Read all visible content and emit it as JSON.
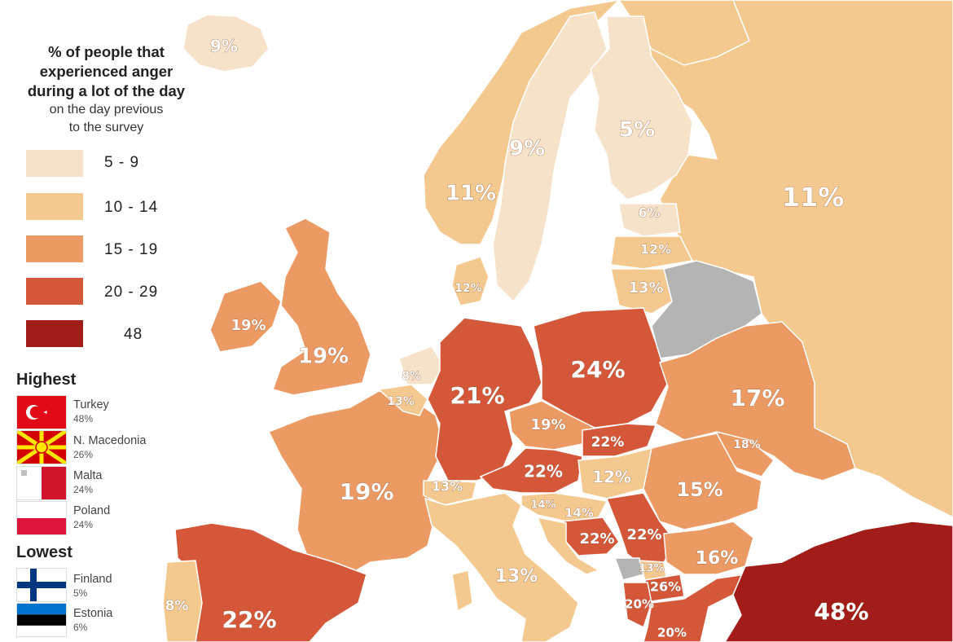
{
  "legend": {
    "title_line1": "% of people that",
    "title_line2": "experienced anger",
    "title_line3": "during a lot of the day",
    "subtitle_line1": "on the day previous",
    "subtitle_line2": "to the survey",
    "bins": [
      {
        "label": "5 - 9",
        "color": "#f6e2c8"
      },
      {
        "label": "10 - 14",
        "color": "#f3c98f"
      },
      {
        "label": "15 - 19",
        "color": "#ec9a63"
      },
      {
        "label": "20 - 29",
        "color": "#d4573a"
      },
      {
        "label": "48",
        "color": "#a21d19"
      }
    ],
    "highest_heading": "Highest",
    "highest": [
      {
        "country": "Turkey",
        "value": "48%"
      },
      {
        "country": "N. Macedonia",
        "value": "26%"
      },
      {
        "country": "Malta",
        "value": "24%"
      },
      {
        "country": "Poland",
        "value": "24%"
      }
    ],
    "lowest_heading": "Lowest",
    "lowest": [
      {
        "country": "Finland",
        "value": "5%"
      },
      {
        "country": "Estonia",
        "value": "6%"
      }
    ]
  },
  "map_labels": {
    "iceland": "9%",
    "norway": "11%",
    "sweden": "9%",
    "finland": "5%",
    "russia": "11%",
    "estonia": "6%",
    "latvia": "12%",
    "lithuania": "13%",
    "denmark": "12%",
    "ireland": "19%",
    "uk": "19%",
    "netherlands": "8%",
    "belgium": "13%",
    "germany": "21%",
    "poland": "24%",
    "ukraine": "17%",
    "czechia": "19%",
    "slovakia": "22%",
    "moldova": "18%",
    "austria": "22%",
    "hungary": "12%",
    "switzerland": "13%",
    "slovenia": "14%",
    "croatia_n": "14%",
    "romania": "15%",
    "france": "19%",
    "bosnia": "22%",
    "serbia": "22%",
    "bulgaria": "16%",
    "montenegro": "13%",
    "n_macedonia": "26%",
    "albania": "20%",
    "greece": "20%",
    "italy": "13%",
    "portugal": "8%",
    "spain": "22%",
    "turkey": "48%"
  },
  "colors": {
    "c5_9": "#f6e2c8",
    "c10_14": "#f3c98f",
    "c15_19": "#ec9a63",
    "c20_29": "#d4573a",
    "c48": "#a21d19",
    "nodata": "#b4b4b4",
    "sea": "#ffffff"
  }
}
